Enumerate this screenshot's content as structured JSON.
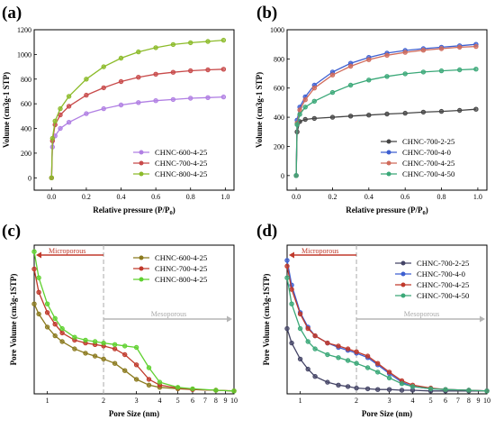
{
  "chart_data": [
    {
      "panel_label": "(a)",
      "type": "line",
      "xlabel": "Relative pressure (P/P0)",
      "ylabel": "Volume (cm3g-1 STP)",
      "xlim": [
        -0.1,
        1.05
      ],
      "ylim": [
        -100,
        1200
      ],
      "xticks": [
        "0.0",
        "0.2",
        "0.4",
        "0.6",
        "0.8",
        "1.0"
      ],
      "yticks": [
        "0",
        "200",
        "400",
        "600",
        "800",
        "1000",
        "1200"
      ],
      "legend_position": "bottom-right",
      "series": [
        {
          "name": "CHNC-600-4-25",
          "color": "#b07fe3",
          "x": [
            0,
            0.005,
            0.02,
            0.05,
            0.1,
            0.2,
            0.3,
            0.4,
            0.5,
            0.6,
            0.7,
            0.8,
            0.9,
            0.99
          ],
          "y": [
            0,
            250,
            340,
            400,
            450,
            520,
            560,
            590,
            610,
            625,
            635,
            645,
            650,
            655
          ]
        },
        {
          "name": "CHNC-700-4-25",
          "color": "#c84a4a",
          "x": [
            0,
            0.005,
            0.02,
            0.05,
            0.1,
            0.2,
            0.3,
            0.4,
            0.5,
            0.6,
            0.7,
            0.8,
            0.9,
            0.99
          ],
          "y": [
            0,
            300,
            430,
            510,
            580,
            670,
            730,
            780,
            815,
            840,
            855,
            868,
            875,
            880
          ]
        },
        {
          "name": "CHNC-800-4-25",
          "color": "#8cbb2a",
          "x": [
            0,
            0.005,
            0.02,
            0.05,
            0.1,
            0.2,
            0.3,
            0.4,
            0.5,
            0.6,
            0.7,
            0.8,
            0.9,
            0.99
          ],
          "y": [
            0,
            320,
            460,
            560,
            660,
            800,
            900,
            970,
            1020,
            1055,
            1080,
            1095,
            1105,
            1115
          ]
        }
      ]
    },
    {
      "panel_label": "(b)",
      "type": "line",
      "xlabel": "Relative pressure (P/P0)",
      "ylabel": "Volume (cm3g-1 STP)",
      "xlim": [
        -0.05,
        1.05
      ],
      "ylim": [
        -100,
        1000
      ],
      "xticks": [
        "0.0",
        "0.2",
        "0.4",
        "0.6",
        "0.8",
        "1.0"
      ],
      "yticks": [
        "0",
        "200",
        "400",
        "600",
        "800",
        "1000"
      ],
      "legend_position": "bottom-right",
      "series": [
        {
          "name": "CHNC-700-2-25",
          "color": "#444444",
          "x": [
            0,
            0.005,
            0.02,
            0.05,
            0.1,
            0.2,
            0.3,
            0.4,
            0.5,
            0.6,
            0.7,
            0.8,
            0.9,
            0.99
          ],
          "y": [
            0,
            300,
            370,
            385,
            392,
            400,
            408,
            415,
            422,
            428,
            435,
            440,
            447,
            455
          ]
        },
        {
          "name": "CHNC-700-4-0",
          "color": "#3d5fd1",
          "x": [
            0,
            0.005,
            0.02,
            0.05,
            0.1,
            0.2,
            0.3,
            0.4,
            0.5,
            0.6,
            0.7,
            0.8,
            0.9,
            0.99
          ],
          "y": [
            0,
            380,
            470,
            540,
            620,
            710,
            770,
            810,
            840,
            858,
            870,
            880,
            890,
            900
          ]
        },
        {
          "name": "CHNC-700-4-25",
          "color": "#d06b5b",
          "x": [
            0,
            0.005,
            0.02,
            0.05,
            0.1,
            0.2,
            0.3,
            0.4,
            0.5,
            0.6,
            0.7,
            0.8,
            0.9,
            0.99
          ],
          "y": [
            0,
            360,
            450,
            520,
            600,
            690,
            750,
            795,
            825,
            845,
            860,
            870,
            880,
            885
          ]
        },
        {
          "name": "CHNC-700-4-50",
          "color": "#3aa878",
          "x": [
            0,
            0.005,
            0.02,
            0.05,
            0.1,
            0.2,
            0.3,
            0.4,
            0.5,
            0.6,
            0.7,
            0.8,
            0.9,
            0.99
          ],
          "y": [
            0,
            350,
            420,
            470,
            510,
            570,
            620,
            655,
            680,
            698,
            710,
            718,
            725,
            730
          ]
        }
      ]
    },
    {
      "panel_label": "(c)",
      "type": "line",
      "xlabel": "Pore Size (nm)",
      "ylabel": "Pore Volume (cm3g-1STP)",
      "xscale": "log",
      "xlim": [
        0.85,
        10
      ],
      "xticks": [
        "1",
        "2",
        "3",
        "4",
        "5",
        "6",
        "7",
        "8",
        "9",
        "10"
      ],
      "yticks": [],
      "legend_position": "top-right",
      "annotations": {
        "micro": "Microporous",
        "meso": "Mesoporous",
        "boundary_nm": 2
      },
      "series": [
        {
          "name": "CHNC-600-4-25",
          "color": "#8b7a1e",
          "x": [
            0.85,
            0.9,
            1.0,
            1.1,
            1.2,
            1.4,
            1.6,
            1.8,
            2.0,
            2.3,
            2.6,
            3.0,
            3.5,
            4.0,
            5.0,
            6.0,
            8.0,
            10.0
          ],
          "y": [
            0.62,
            0.55,
            0.46,
            0.4,
            0.36,
            0.31,
            0.28,
            0.26,
            0.24,
            0.21,
            0.16,
            0.1,
            0.06,
            0.045,
            0.035,
            0.03,
            0.025,
            0.02
          ]
        },
        {
          "name": "CHNC-700-4-25",
          "color": "#c0392b",
          "x": [
            0.85,
            0.9,
            1.0,
            1.1,
            1.2,
            1.4,
            1.6,
            1.8,
            2.0,
            2.3,
            2.6,
            3.0,
            3.5,
            4.0,
            5.0,
            6.0,
            8.0,
            10.0
          ],
          "y": [
            0.86,
            0.7,
            0.56,
            0.48,
            0.42,
            0.37,
            0.35,
            0.34,
            0.33,
            0.31,
            0.27,
            0.2,
            0.1,
            0.06,
            0.04,
            0.03,
            0.025,
            0.02
          ]
        },
        {
          "name": "CHNC-800-4-25",
          "color": "#5fd12f",
          "x": [
            0.85,
            0.9,
            1.0,
            1.1,
            1.2,
            1.4,
            1.6,
            1.8,
            2.0,
            2.3,
            2.6,
            3.0,
            3.5,
            4.0,
            5.0,
            6.0,
            8.0,
            10.0
          ],
          "y": [
            0.98,
            0.8,
            0.62,
            0.52,
            0.45,
            0.39,
            0.37,
            0.36,
            0.35,
            0.34,
            0.33,
            0.32,
            0.18,
            0.08,
            0.045,
            0.035,
            0.025,
            0.02
          ]
        }
      ]
    },
    {
      "panel_label": "(d)",
      "type": "line",
      "xlabel": "Pore Size (nm)",
      "ylabel": "Pore Volume (cm3g-1STP)",
      "xscale": "log",
      "xlim": [
        0.85,
        10
      ],
      "xticks": [
        "1",
        "2",
        "3",
        "4",
        "5",
        "6",
        "7",
        "8",
        "9",
        "10"
      ],
      "yticks": [],
      "legend_position": "top-right",
      "annotations": {
        "micro": "Microporous",
        "meso": "Mesoporous",
        "boundary_nm": 2
      },
      "series": [
        {
          "name": "CHNC-700-2-25",
          "color": "#444466",
          "x": [
            0.85,
            0.9,
            1.0,
            1.1,
            1.2,
            1.4,
            1.6,
            1.8,
            2.0,
            2.3,
            2.6,
            3.0,
            3.5,
            4.0,
            5.0,
            6.0,
            8.0,
            10.0
          ],
          "y": [
            0.45,
            0.35,
            0.24,
            0.17,
            0.12,
            0.08,
            0.06,
            0.05,
            0.04,
            0.035,
            0.03,
            0.03,
            0.025,
            0.025,
            0.02,
            0.02,
            0.02,
            0.02
          ]
        },
        {
          "name": "CHNC-700-4-0",
          "color": "#3d5fd1",
          "x": [
            0.85,
            0.9,
            1.0,
            1.1,
            1.2,
            1.4,
            1.6,
            1.8,
            2.0,
            2.3,
            2.6,
            3.0,
            3.5,
            4.0,
            5.0,
            6.0,
            8.0,
            10.0
          ],
          "y": [
            0.92,
            0.75,
            0.56,
            0.46,
            0.4,
            0.35,
            0.32,
            0.3,
            0.28,
            0.25,
            0.2,
            0.14,
            0.08,
            0.05,
            0.035,
            0.03,
            0.025,
            0.02
          ]
        },
        {
          "name": "CHNC-700-4-25",
          "color": "#c0392b",
          "x": [
            0.85,
            0.9,
            1.0,
            1.1,
            1.2,
            1.4,
            1.6,
            1.8,
            2.0,
            2.3,
            2.6,
            3.0,
            3.5,
            4.0,
            5.0,
            6.0,
            8.0,
            10.0
          ],
          "y": [
            0.88,
            0.72,
            0.55,
            0.45,
            0.4,
            0.35,
            0.33,
            0.31,
            0.29,
            0.26,
            0.21,
            0.15,
            0.09,
            0.06,
            0.04,
            0.03,
            0.025,
            0.02
          ]
        },
        {
          "name": "CHNC-700-4-50",
          "color": "#3aa878",
          "x": [
            0.85,
            0.9,
            1.0,
            1.1,
            1.2,
            1.4,
            1.6,
            1.8,
            2.0,
            2.3,
            2.6,
            3.0,
            3.5,
            4.0,
            5.0,
            6.0,
            8.0,
            10.0
          ],
          "y": [
            0.8,
            0.62,
            0.45,
            0.36,
            0.31,
            0.27,
            0.25,
            0.23,
            0.21,
            0.18,
            0.15,
            0.11,
            0.07,
            0.05,
            0.035,
            0.03,
            0.025,
            0.02
          ]
        }
      ]
    }
  ]
}
